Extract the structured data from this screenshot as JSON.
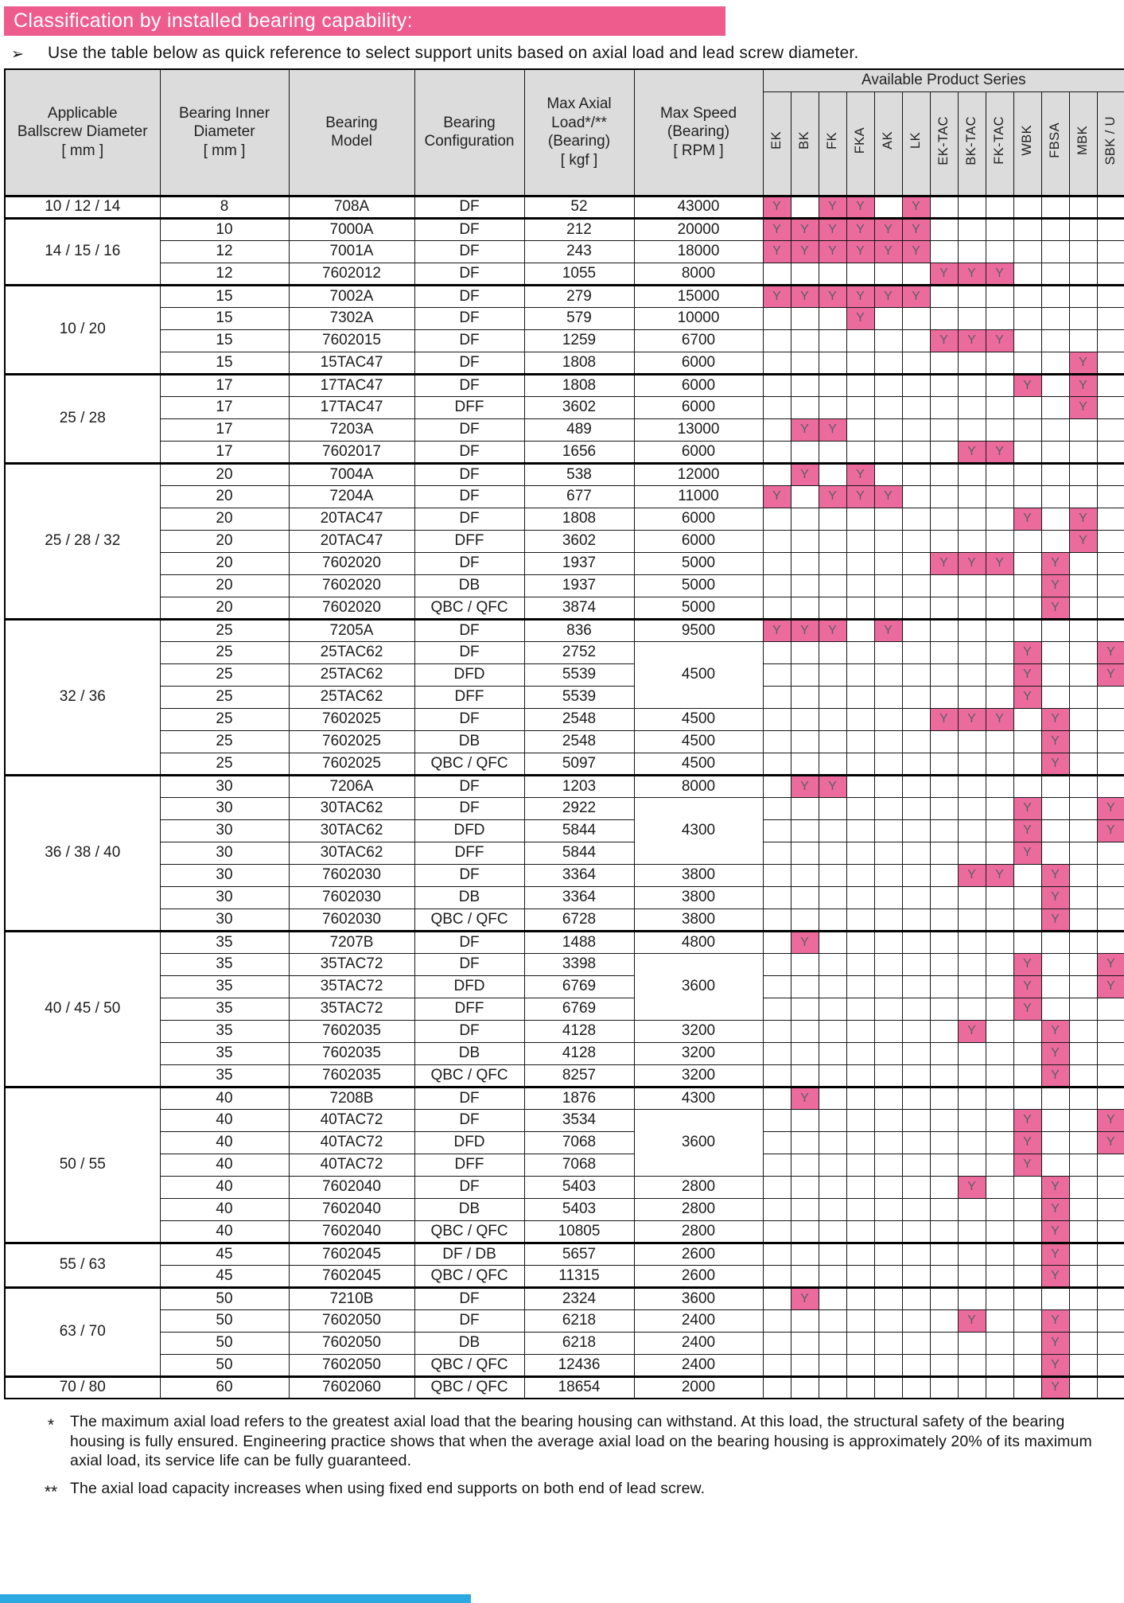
{
  "page": {
    "title": "Classification by installed bearing capability:",
    "bullet_glyph": "➢",
    "intro_bullet": "Use the table below as quick reference to select support units based on axial load and lead screw diameter."
  },
  "colors": {
    "banner_pink": "#ee5b8d",
    "mark_pink": "#ec6b9d",
    "header_gray": "#dcdcdc",
    "footer_blue": "#2da9e1"
  },
  "table": {
    "mark": "Y",
    "headers": {
      "main": [
        {
          "key": "applicable-ballscrew-diameter",
          "lines": [
            "Applicable",
            "Ballscrew Diameter",
            "[ mm ]"
          ]
        },
        {
          "key": "bearing-inner-diameter",
          "lines": [
            "Bearing Inner",
            "Diameter",
            "[ mm ]"
          ]
        },
        {
          "key": "bearing-model",
          "lines": [
            "Bearing",
            "Model"
          ]
        },
        {
          "key": "bearing-configuration",
          "lines": [
            "Bearing",
            "Configuration"
          ]
        },
        {
          "key": "max-axial-load",
          "lines": [
            "Max Axial",
            "Load*/**",
            "(Bearing)",
            "[ kgf ]"
          ]
        },
        {
          "key": "max-speed",
          "lines": [
            "Max Speed",
            "(Bearing)",
            "[ RPM ]"
          ]
        }
      ],
      "series_title": "Available Product Series",
      "series_columns": [
        "EK",
        "BK",
        "FK",
        "FKA",
        "AK",
        "LK",
        "EK-TAC",
        "BK-TAC",
        "FK-TAC",
        "WBK",
        "FBSA",
        "MBK",
        "SBK / U"
      ]
    },
    "groups": [
      {
        "diameter": "10 / 12 / 14",
        "rows": [
          {
            "inner": "8",
            "model": "708A",
            "config": "DF",
            "load": "52",
            "speed": "43000",
            "series": [
              "EK",
              "FK",
              "FKA",
              "LK"
            ]
          }
        ]
      },
      {
        "diameter": "14 / 15 / 16",
        "rows": [
          {
            "inner": "10",
            "model": "7000A",
            "config": "DF",
            "load": "212",
            "speed": "20000",
            "series": [
              "EK",
              "BK",
              "FK",
              "FKA",
              "AK",
              "LK"
            ]
          },
          {
            "inner": "12",
            "model": "7001A",
            "config": "DF",
            "load": "243",
            "speed": "18000",
            "series": [
              "EK",
              "BK",
              "FK",
              "FKA",
              "AK",
              "LK"
            ]
          },
          {
            "inner": "12",
            "model": "7602012",
            "config": "DF",
            "load": "1055",
            "speed": "8000",
            "series": [
              "EK-TAC",
              "BK-TAC",
              "FK-TAC"
            ]
          }
        ]
      },
      {
        "diameter": "10 / 20",
        "rows": [
          {
            "inner": "15",
            "model": "7002A",
            "config": "DF",
            "load": "279",
            "speed": "15000",
            "series": [
              "EK",
              "BK",
              "FK",
              "FKA",
              "AK",
              "LK"
            ]
          },
          {
            "inner": "15",
            "model": "7302A",
            "config": "DF",
            "load": "579",
            "speed": "10000",
            "series": [
              "FKA"
            ]
          },
          {
            "inner": "15",
            "model": "7602015",
            "config": "DF",
            "load": "1259",
            "speed": "6700",
            "series": [
              "EK-TAC",
              "BK-TAC",
              "FK-TAC"
            ]
          },
          {
            "inner": "15",
            "model": "15TAC47",
            "config": "DF",
            "load": "1808",
            "speed": "6000",
            "series": [
              "MBK"
            ]
          }
        ]
      },
      {
        "diameter": "25 / 28",
        "rows": [
          {
            "inner": "17",
            "model": "17TAC47",
            "config": "DF",
            "load": "1808",
            "speed": "6000",
            "series": [
              "WBK",
              "MBK"
            ]
          },
          {
            "inner": "17",
            "model": "17TAC47",
            "config": "DFF",
            "load": "3602",
            "speed": "6000",
            "series": [
              "MBK"
            ]
          },
          {
            "inner": "17",
            "model": "7203A",
            "config": "DF",
            "load": "489",
            "speed": "13000",
            "series": [
              "BK",
              "FK"
            ]
          },
          {
            "inner": "17",
            "model": "7602017",
            "config": "DF",
            "load": "1656",
            "speed": "6000",
            "series": [
              "BK-TAC",
              "FK-TAC"
            ]
          }
        ]
      },
      {
        "diameter": "25 / 28 / 32",
        "rows": [
          {
            "inner": "20",
            "model": "7004A",
            "config": "DF",
            "load": "538",
            "speed": "12000",
            "series": [
              "BK",
              "FKA"
            ]
          },
          {
            "inner": "20",
            "model": "7204A",
            "config": "DF",
            "load": "677",
            "speed": "11000",
            "series": [
              "EK",
              "FK",
              "FKA",
              "AK"
            ]
          },
          {
            "inner": "20",
            "model": "20TAC47",
            "config": "DF",
            "load": "1808",
            "speed": "6000",
            "series": [
              "WBK",
              "MBK"
            ]
          },
          {
            "inner": "20",
            "model": "20TAC47",
            "config": "DFF",
            "load": "3602",
            "speed": "6000",
            "series": [
              "MBK"
            ]
          },
          {
            "inner": "20",
            "model": "7602020",
            "config": "DF",
            "load": "1937",
            "speed": "5000",
            "series": [
              "EK-TAC",
              "BK-TAC",
              "FK-TAC",
              "FBSA"
            ]
          },
          {
            "inner": "20",
            "model": "7602020",
            "config": "DB",
            "load": "1937",
            "speed": "5000",
            "series": [
              "FBSA"
            ]
          },
          {
            "inner": "20",
            "model": "7602020",
            "config": "QBC / QFC",
            "load": "3874",
            "speed": "5000",
            "series": [
              "FBSA"
            ]
          }
        ]
      },
      {
        "diameter": "32 / 36",
        "rows": [
          {
            "inner": "25",
            "model": "7205A",
            "config": "DF",
            "load": "836",
            "speed": "9500",
            "series": [
              "EK",
              "BK",
              "FK",
              "AK"
            ]
          },
          {
            "inner": "25",
            "model": "25TAC62",
            "config": "DF",
            "load": "2752",
            "speed": "4500",
            "speed_span": 3,
            "series": [
              "WBK",
              "SBK / U"
            ]
          },
          {
            "inner": "25",
            "model": "25TAC62",
            "config": "DFD",
            "load": "5539",
            "speed": null,
            "series": [
              "WBK",
              "SBK / U"
            ]
          },
          {
            "inner": "25",
            "model": "25TAC62",
            "config": "DFF",
            "load": "5539",
            "speed": null,
            "series": [
              "WBK"
            ]
          },
          {
            "inner": "25",
            "model": "7602025",
            "config": "DF",
            "load": "2548",
            "speed": "4500",
            "series": [
              "EK-TAC",
              "BK-TAC",
              "FK-TAC",
              "FBSA"
            ]
          },
          {
            "inner": "25",
            "model": "7602025",
            "config": "DB",
            "load": "2548",
            "speed": "4500",
            "series": [
              "FBSA"
            ]
          },
          {
            "inner": "25",
            "model": "7602025",
            "config": "QBC / QFC",
            "load": "5097",
            "speed": "4500",
            "series": [
              "FBSA"
            ]
          }
        ]
      },
      {
        "diameter": "36 / 38 / 40",
        "rows": [
          {
            "inner": "30",
            "model": "7206A",
            "config": "DF",
            "load": "1203",
            "speed": "8000",
            "series": [
              "BK",
              "FK"
            ]
          },
          {
            "inner": "30",
            "model": "30TAC62",
            "config": "DF",
            "load": "2922",
            "speed": "4300",
            "speed_span": 3,
            "series": [
              "WBK",
              "SBK / U"
            ]
          },
          {
            "inner": "30",
            "model": "30TAC62",
            "config": "DFD",
            "load": "5844",
            "speed": null,
            "series": [
              "WBK",
              "SBK / U"
            ]
          },
          {
            "inner": "30",
            "model": "30TAC62",
            "config": "DFF",
            "load": "5844",
            "speed": null,
            "series": [
              "WBK"
            ]
          },
          {
            "inner": "30",
            "model": "7602030",
            "config": "DF",
            "load": "3364",
            "speed": "3800",
            "series": [
              "BK-TAC",
              "FK-TAC",
              "FBSA"
            ]
          },
          {
            "inner": "30",
            "model": "7602030",
            "config": "DB",
            "load": "3364",
            "speed": "3800",
            "series": [
              "FBSA"
            ]
          },
          {
            "inner": "30",
            "model": "7602030",
            "config": "QBC / QFC",
            "load": "6728",
            "speed": "3800",
            "series": [
              "FBSA"
            ]
          }
        ]
      },
      {
        "diameter": "40 / 45 / 50",
        "rows": [
          {
            "inner": "35",
            "model": "7207B",
            "config": "DF",
            "load": "1488",
            "speed": "4800",
            "series": [
              "BK"
            ]
          },
          {
            "inner": "35",
            "model": "35TAC72",
            "config": "DF",
            "load": "3398",
            "speed": "3600",
            "speed_span": 3,
            "series": [
              "WBK",
              "SBK / U"
            ]
          },
          {
            "inner": "35",
            "model": "35TAC72",
            "config": "DFD",
            "load": "6769",
            "speed": null,
            "series": [
              "WBK",
              "SBK / U"
            ]
          },
          {
            "inner": "35",
            "model": "35TAC72",
            "config": "DFF",
            "load": "6769",
            "speed": null,
            "series": [
              "WBK"
            ]
          },
          {
            "inner": "35",
            "model": "7602035",
            "config": "DF",
            "load": "4128",
            "speed": "3200",
            "series": [
              "BK-TAC",
              "FBSA"
            ]
          },
          {
            "inner": "35",
            "model": "7602035",
            "config": "DB",
            "load": "4128",
            "speed": "3200",
            "series": [
              "FBSA"
            ]
          },
          {
            "inner": "35",
            "model": "7602035",
            "config": "QBC / QFC",
            "load": "8257",
            "speed": "3200",
            "series": [
              "FBSA"
            ]
          }
        ]
      },
      {
        "diameter": "50 / 55",
        "rows": [
          {
            "inner": "40",
            "model": "7208B",
            "config": "DF",
            "load": "1876",
            "speed": "4300",
            "series": [
              "BK"
            ]
          },
          {
            "inner": "40",
            "model": "40TAC72",
            "config": "DF",
            "load": "3534",
            "speed": "3600",
            "speed_span": 3,
            "series": [
              "WBK",
              "SBK / U"
            ]
          },
          {
            "inner": "40",
            "model": "40TAC72",
            "config": "DFD",
            "load": "7068",
            "speed": null,
            "series": [
              "WBK",
              "SBK / U"
            ]
          },
          {
            "inner": "40",
            "model": "40TAC72",
            "config": "DFF",
            "load": "7068",
            "speed": null,
            "series": [
              "WBK"
            ]
          },
          {
            "inner": "40",
            "model": "7602040",
            "config": "DF",
            "load": "5403",
            "speed": "2800",
            "series": [
              "BK-TAC",
              "FBSA"
            ]
          },
          {
            "inner": "40",
            "model": "7602040",
            "config": "DB",
            "load": "5403",
            "speed": "2800",
            "series": [
              "FBSA"
            ]
          },
          {
            "inner": "40",
            "model": "7602040",
            "config": "QBC / QFC",
            "load": "10805",
            "speed": "2800",
            "series": [
              "FBSA"
            ]
          }
        ]
      },
      {
        "diameter": "55 / 63",
        "rows": [
          {
            "inner": "45",
            "model": "7602045",
            "config": "DF / DB",
            "load": "5657",
            "speed": "2600",
            "series": [
              "FBSA"
            ]
          },
          {
            "inner": "45",
            "model": "7602045",
            "config": "QBC / QFC",
            "load": "11315",
            "speed": "2600",
            "series": [
              "FBSA"
            ]
          }
        ]
      },
      {
        "diameter": "63 / 70",
        "rows": [
          {
            "inner": "50",
            "model": "7210B",
            "config": "DF",
            "load": "2324",
            "speed": "3600",
            "series": [
              "BK"
            ]
          },
          {
            "inner": "50",
            "model": "7602050",
            "config": "DF",
            "load": "6218",
            "speed": "2400",
            "series": [
              "BK-TAC",
              "FBSA"
            ]
          },
          {
            "inner": "50",
            "model": "7602050",
            "config": "DB",
            "load": "6218",
            "speed": "2400",
            "series": [
              "FBSA"
            ]
          },
          {
            "inner": "50",
            "model": "7602050",
            "config": "QBC / QFC",
            "load": "12436",
            "speed": "2400",
            "series": [
              "FBSA"
            ]
          }
        ]
      },
      {
        "diameter": "70 / 80",
        "rows": [
          {
            "inner": "60",
            "model": "7602060",
            "config": "QBC / QFC",
            "load": "18654",
            "speed": "2000",
            "series": [
              "FBSA"
            ]
          }
        ]
      }
    ]
  },
  "footnotes": [
    {
      "marker": "*",
      "text": "The maximum axial load refers to the greatest axial load that the bearing housing can withstand. At this load, the structural safety of the bearing housing is fully ensured. Engineering practice shows that when the average axial load on the bearing housing is approximately 20% of its maximum axial load, its service life can be fully guaranteed."
    },
    {
      "marker": "**",
      "text": "The axial load capacity increases when using fixed end supports on both end of lead screw."
    }
  ]
}
